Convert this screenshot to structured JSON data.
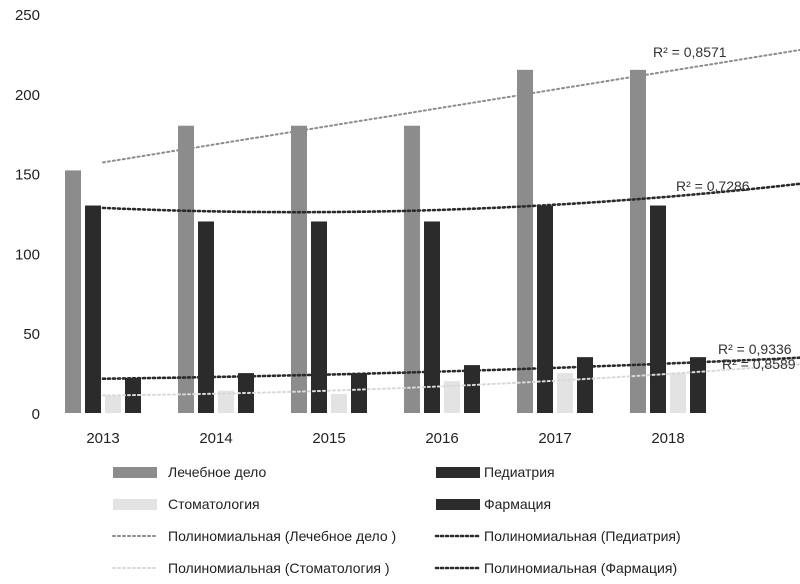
{
  "chart_data": {
    "type": "bar",
    "title": "",
    "xlabel": "",
    "ylabel": "",
    "ylim": [
      0,
      250
    ],
    "yticks": [
      0,
      50,
      100,
      150,
      200,
      250
    ],
    "grid": false,
    "legend_position": "bottom",
    "categories": [
      "2013",
      "2014",
      "2015",
      "2016",
      "2017",
      "2018"
    ],
    "series": [
      {
        "name": "Лечебное дело",
        "color": "#8c8c8c",
        "values": [
          152,
          180,
          180,
          180,
          215,
          215
        ]
      },
      {
        "name": "Педиатрия",
        "color": "#2b2b2b",
        "values": [
          130,
          120,
          120,
          120,
          130,
          130
        ]
      },
      {
        "name": "Стоматология",
        "color": "#e3e3e3",
        "values": [
          11,
          14,
          12,
          20,
          25,
          25
        ]
      },
      {
        "name": "Фармация",
        "color": "#2b2b2b",
        "values": [
          22,
          25,
          25,
          30,
          35,
          35
        ]
      }
    ],
    "trendlines": [
      {
        "name": "Полиномиальная (Лечебное дело )",
        "series": "Лечебное дело",
        "type": "polynomial",
        "color": "#8c8c8c",
        "r2_label": "R² = 0,8571",
        "y_start": 157,
        "y_end": 229
      },
      {
        "name": "Полиномиальная (Педиатрия)",
        "series": "Педиатрия",
        "type": "polynomial",
        "color": "#2b2b2b",
        "r2_label": "R² = 0,7286",
        "coeffs": [
          128.5,
          -3.1,
          0.9
        ]
      },
      {
        "name": "Полиномиальная (Стоматология )",
        "series": "Стоматология",
        "type": "polynomial",
        "color": "#d9d9d9",
        "r2_label": "R² = 0,8589",
        "coeffs": [
          11,
          0.7,
          0.4
        ]
      },
      {
        "name": "Полиномиальная (Фармация)",
        "series": "Фармация",
        "type": "polynomial",
        "color": "#2b2b2b",
        "r2_label": "R² = 0,9336",
        "coeffs": [
          21.5,
          0.9,
          0.2
        ]
      }
    ]
  }
}
